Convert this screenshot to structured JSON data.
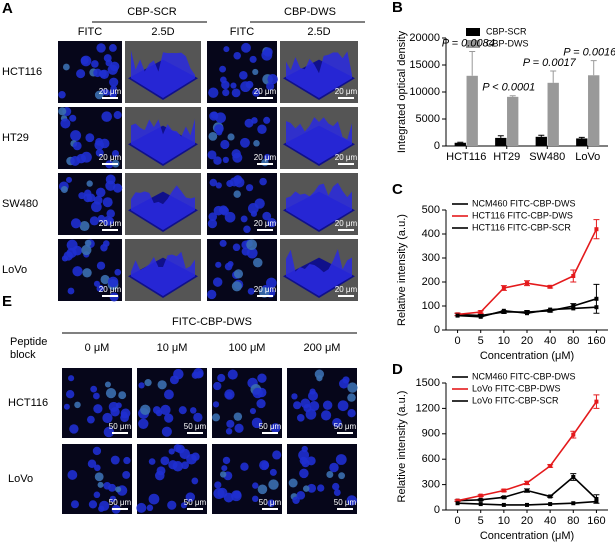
{
  "panel_a": {
    "label": "A",
    "groups": [
      "CBP-SCR",
      "CBP-DWS"
    ],
    "columns": [
      "FITC",
      "2.5D",
      "FITC",
      "2.5D"
    ],
    "rows": [
      "HCT116",
      "HT29",
      "SW480",
      "LoVo"
    ],
    "scale_bar": "20 μm"
  },
  "panel_e": {
    "label": "E",
    "title": "FITC-CBP-DWS",
    "row_header": [
      "Peptide",
      "block"
    ],
    "columns": [
      "0 μM",
      "10 μM",
      "100 μM",
      "200 μM"
    ],
    "rows": [
      "HCT116",
      "LoVo"
    ],
    "scale_bar": "50 μm"
  },
  "chart_data": [
    {
      "type": "bar",
      "panel": "B",
      "ylabel": "Integrated optical density",
      "categories": [
        "HCT116",
        "HT29",
        "SW480",
        "LoVo"
      ],
      "series": [
        {
          "name": "CBP-SCR",
          "color": "#000000",
          "values": [
            600,
            1500,
            1700,
            1400
          ],
          "errors": [
            100,
            400,
            300,
            200
          ]
        },
        {
          "name": "CBP-DWS",
          "color": "#999999",
          "values": [
            13000,
            9100,
            11700,
            13100
          ],
          "errors": [
            4500,
            200,
            2200,
            2700
          ]
        }
      ],
      "annotations": [
        "P = 0.0084",
        "P < 0.0001",
        "P = 0.0017",
        "P = 0.0016"
      ],
      "ylim": [
        0,
        20000
      ],
      "yticks": [
        0,
        5000,
        10000,
        15000,
        20000
      ],
      "legend": "upper left",
      "grid": false
    },
    {
      "type": "line",
      "panel": "C",
      "ylabel": "Relative intensity (a.u.)",
      "xlabel": "Concentration (μM)",
      "categories": [
        "0",
        "5",
        "10",
        "20",
        "40",
        "80",
        "160"
      ],
      "series": [
        {
          "name": "NCM460 FITC-CBP-DWS",
          "color": "#000000",
          "values": [
            65,
            60,
            75,
            75,
            80,
            100,
            130
          ],
          "errors": [
            5,
            5,
            5,
            5,
            5,
            10,
            60
          ]
        },
        {
          "name": "HCT116 FITC-CBP-DWS",
          "color": "#e41a1c",
          "values": [
            65,
            75,
            175,
            195,
            180,
            225,
            420
          ],
          "errors": [
            5,
            5,
            10,
            10,
            5,
            25,
            40
          ]
        },
        {
          "name": "HCT116 FITC-CBP-SCR",
          "color": "#000000",
          "values": [
            60,
            55,
            80,
            70,
            85,
            90,
            95
          ]
        }
      ],
      "ylim": [
        0,
        500
      ],
      "yticks": [
        0,
        100,
        200,
        300,
        400,
        500
      ],
      "legend": "upper left",
      "grid": false
    },
    {
      "type": "line",
      "panel": "D",
      "ylabel": "Relative intensity (a.u.)",
      "xlabel": "Concentration (μM)",
      "categories": [
        "0",
        "5",
        "10",
        "20",
        "40",
        "80",
        "160"
      ],
      "series": [
        {
          "name": "NCM460 FITC-CBP-DWS",
          "color": "#000000",
          "values": [
            110,
            120,
            150,
            230,
            160,
            390,
            130
          ],
          "errors": [
            10,
            10,
            10,
            20,
            10,
            40,
            50
          ]
        },
        {
          "name": "LoVo FITC-CBP-DWS",
          "color": "#e41a1c",
          "values": [
            110,
            170,
            230,
            320,
            520,
            890,
            1280
          ],
          "errors": [
            10,
            10,
            15,
            20,
            15,
            40,
            80
          ]
        },
        {
          "name": "LoVo FITC-CBP-SCR",
          "color": "#000000",
          "values": [
            80,
            70,
            60,
            60,
            70,
            80,
            100
          ]
        }
      ],
      "ylim": [
        0,
        1500
      ],
      "yticks": [
        0,
        300,
        600,
        900,
        1200,
        1500
      ],
      "legend": "upper left",
      "grid": false
    }
  ]
}
